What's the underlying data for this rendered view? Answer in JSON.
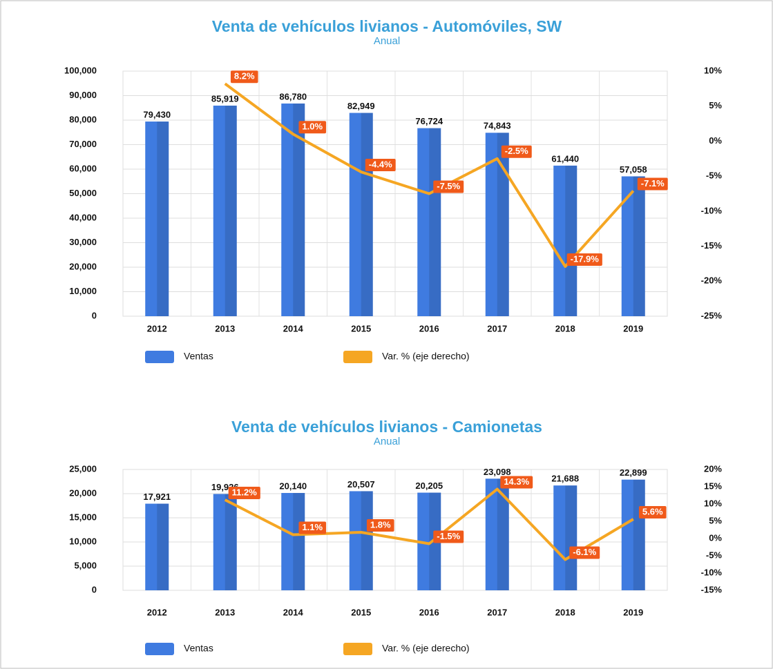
{
  "chart_data": [
    {
      "type": "bar",
      "title": "Venta de vehículos livianos - Automóviles, SW",
      "subtitle": "Anual",
      "categories": [
        "2012",
        "2013",
        "2014",
        "2015",
        "2016",
        "2017",
        "2018",
        "2019"
      ],
      "series": [
        {
          "name": "Ventas",
          "color": "#3f7be0",
          "values": [
            79430,
            85919,
            86780,
            82949,
            76724,
            74843,
            61440,
            57058
          ],
          "value_labels": [
            "79,430",
            "85,919",
            "86,780",
            "82,949",
            "76,724",
            "74,843",
            "61,440",
            "57,058"
          ]
        },
        {
          "name": "Var. % (eje derecho)",
          "type": "line",
          "axis": "y2",
          "color": "#f5a623",
          "label_color": "#f05a1a",
          "values": [
            null,
            8.2,
            1.0,
            -4.4,
            -7.5,
            -2.5,
            -17.9,
            -7.1
          ],
          "value_labels": [
            null,
            "8.2%",
            "1.0%",
            "-4.4%",
            "-7.5%",
            "-2.5%",
            "-17.9%",
            "-7.1%"
          ]
        }
      ],
      "ylim": [
        0,
        100000
      ],
      "yticks": [
        0,
        {
          "value": 10000,
          "label": "10,000"
        },
        {
          "value": 20000,
          "label": "20,000"
        },
        {
          "value": 30000,
          "label": "30,000"
        },
        {
          "value": 40000,
          "label": "40,000"
        },
        {
          "value": 50000,
          "label": "50,000"
        },
        {
          "value": 60000,
          "label": "60,000"
        },
        {
          "value": 70000,
          "label": "70,000"
        },
        {
          "value": 80000,
          "label": "80,000"
        },
        {
          "value": 90000,
          "label": "90,000"
        },
        {
          "value": 100000,
          "label": "100,000"
        }
      ],
      "y2lim": [
        -25,
        10
      ],
      "y2ticks": [
        {
          "value": -25,
          "label": "-25%"
        },
        {
          "value": -20,
          "label": "-20%"
        },
        {
          "value": -15,
          "label": "-15%"
        },
        {
          "value": -10,
          "label": "-10%"
        },
        {
          "value": -5,
          "label": "-5%"
        },
        {
          "value": 0,
          "label": "0%"
        },
        {
          "value": 5,
          "label": "5%"
        },
        {
          "value": 10,
          "label": "10%"
        }
      ],
      "grid": true
    },
    {
      "type": "bar",
      "title": "Venta de vehículos livianos - Camionetas",
      "subtitle": "Anual",
      "categories": [
        "2012",
        "2013",
        "2014",
        "2015",
        "2016",
        "2017",
        "2018",
        "2019"
      ],
      "series": [
        {
          "name": "Ventas",
          "color": "#3f7be0",
          "values": [
            17921,
            19926,
            20140,
            20507,
            20205,
            23098,
            21688,
            22899
          ],
          "value_labels": [
            "17,921",
            "19,926",
            "20,140",
            "20,507",
            "20,205",
            "23,098",
            "21,688",
            "22,899"
          ]
        },
        {
          "name": "Var. % (eje derecho)",
          "type": "line",
          "axis": "y2",
          "color": "#f5a623",
          "label_color": "#f05a1a",
          "values": [
            null,
            11.2,
            1.1,
            1.8,
            -1.5,
            14.3,
            -6.1,
            5.6
          ],
          "value_labels": [
            null,
            "11.2%",
            "1.1%",
            "1.8%",
            "-1.5%",
            "14.3%",
            "-6.1%",
            "5.6%"
          ]
        }
      ],
      "ylim": [
        0,
        25000
      ],
      "yticks": [
        0,
        {
          "value": 5000,
          "label": "5,000"
        },
        {
          "value": 10000,
          "label": "10,000"
        },
        {
          "value": 15000,
          "label": "15,000"
        },
        {
          "value": 20000,
          "label": "20,000"
        },
        {
          "value": 25000,
          "label": "25,000"
        }
      ],
      "y2lim": [
        -15,
        20
      ],
      "y2ticks": [
        {
          "value": -15,
          "label": "-15%"
        },
        {
          "value": -10,
          "label": "-10%"
        },
        {
          "value": -5,
          "label": "-5%"
        },
        {
          "value": 0,
          "label": "0%"
        },
        {
          "value": 5,
          "label": "5%"
        },
        {
          "value": 10,
          "label": "10%"
        },
        {
          "value": 15,
          "label": "15%"
        },
        {
          "value": 20,
          "label": "20%"
        }
      ],
      "grid": true
    }
  ]
}
